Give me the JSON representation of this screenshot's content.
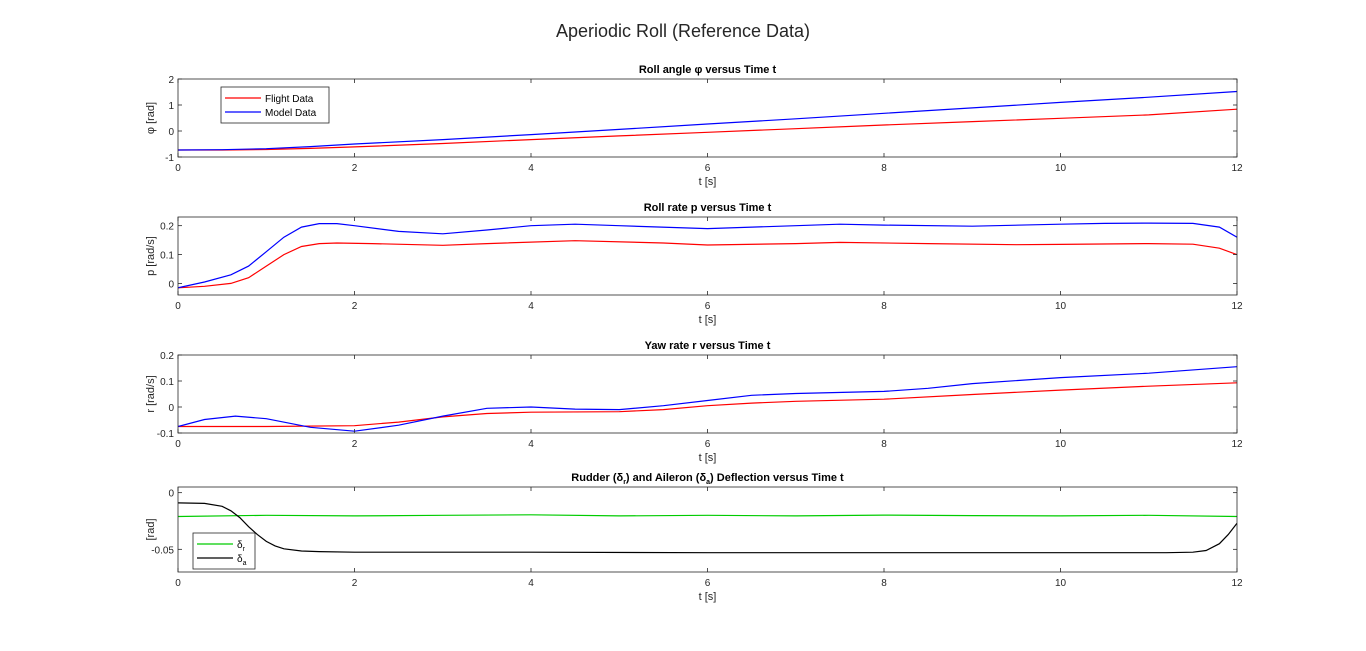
{
  "figure_title": "Aperiodic Roll (Reference Data)",
  "colors": {
    "flight": "#ff0000",
    "model": "#0000ff",
    "rudder": "#00cc00",
    "aileron": "#000000"
  },
  "chart_data": [
    {
      "type": "line",
      "title": "Roll angle φ versus Time t",
      "xlabel": "t [s]",
      "ylabel": "φ [rad]",
      "xlim": [
        0,
        12
      ],
      "ylim": [
        -1,
        2
      ],
      "xticks": [
        0,
        2,
        4,
        6,
        8,
        10,
        12
      ],
      "yticks": [
        -1,
        0,
        1,
        2
      ],
      "legend": {
        "position": "top-left"
      },
      "grid": false,
      "series": [
        {
          "name": "Flight Data",
          "color": "#ff0000",
          "x": [
            0,
            0.5,
            1,
            1.5,
            2,
            3,
            4,
            5,
            6,
            7,
            8,
            9,
            10,
            11,
            12
          ],
          "y": [
            -0.73,
            -0.73,
            -0.71,
            -0.67,
            -0.61,
            -0.48,
            -0.33,
            -0.19,
            -0.05,
            0.09,
            0.23,
            0.36,
            0.49,
            0.62,
            0.84
          ]
        },
        {
          "name": "Model Data",
          "color": "#0000ff",
          "x": [
            0,
            0.5,
            1,
            1.5,
            2,
            3,
            4,
            5,
            6,
            7,
            8,
            9,
            10,
            11,
            12
          ],
          "y": [
            -0.73,
            -0.72,
            -0.68,
            -0.6,
            -0.5,
            -0.33,
            -0.14,
            0.06,
            0.27,
            0.47,
            0.68,
            0.89,
            1.1,
            1.3,
            1.52
          ]
        }
      ]
    },
    {
      "type": "line",
      "title": "Roll rate p versus Time t",
      "xlabel": "t [s]",
      "ylabel": "p [rad/s]",
      "xlim": [
        0,
        12
      ],
      "ylim": [
        -0.04,
        0.23
      ],
      "xticks": [
        0,
        2,
        4,
        6,
        8,
        10,
        12
      ],
      "yticks": [
        0,
        0.1,
        0.2
      ],
      "grid": false,
      "series": [
        {
          "name": "Flight Data",
          "color": "#ff0000",
          "x": [
            0,
            0.3,
            0.6,
            0.8,
            1.0,
            1.2,
            1.4,
            1.6,
            1.8,
            2.2,
            3,
            3.5,
            4.5,
            5.5,
            6,
            7,
            7.5,
            8.5,
            9.5,
            10,
            11,
            11.5,
            11.8,
            12
          ],
          "y": [
            -0.015,
            -0.01,
            0.0,
            0.02,
            0.06,
            0.1,
            0.128,
            0.138,
            0.14,
            0.138,
            0.132,
            0.138,
            0.148,
            0.14,
            0.133,
            0.138,
            0.142,
            0.138,
            0.134,
            0.135,
            0.138,
            0.136,
            0.122,
            0.1
          ]
        },
        {
          "name": "Model Data",
          "color": "#0000ff",
          "x": [
            0,
            0.3,
            0.6,
            0.8,
            1.0,
            1.2,
            1.4,
            1.6,
            1.8,
            2.0,
            2.5,
            3,
            3.5,
            4,
            4.5,
            5,
            6,
            7,
            7.5,
            8,
            9,
            10,
            10.5,
            11,
            11.5,
            11.8,
            12
          ],
          "y": [
            -0.015,
            0.005,
            0.03,
            0.06,
            0.11,
            0.16,
            0.195,
            0.207,
            0.207,
            0.2,
            0.18,
            0.172,
            0.185,
            0.2,
            0.205,
            0.2,
            0.19,
            0.2,
            0.205,
            0.202,
            0.198,
            0.205,
            0.208,
            0.209,
            0.208,
            0.195,
            0.16
          ]
        }
      ]
    },
    {
      "type": "line",
      "title": "Yaw rate r versus Time t",
      "xlabel": "t [s]",
      "ylabel": "r [rad/s]",
      "xlim": [
        0,
        12
      ],
      "ylim": [
        -0.1,
        0.2
      ],
      "xticks": [
        0,
        2,
        4,
        6,
        8,
        10,
        12
      ],
      "yticks": [
        -0.1,
        0,
        0.1,
        0.2
      ],
      "grid": false,
      "series": [
        {
          "name": "Flight Data",
          "color": "#ff0000",
          "x": [
            0,
            1,
            2,
            2.5,
            3,
            3.5,
            4,
            5,
            5.5,
            6,
            6.5,
            7,
            8,
            9,
            10,
            11,
            12
          ],
          "y": [
            -0.075,
            -0.075,
            -0.072,
            -0.058,
            -0.038,
            -0.025,
            -0.02,
            -0.018,
            -0.01,
            0.005,
            0.015,
            0.022,
            0.03,
            0.048,
            0.065,
            0.08,
            0.093
          ]
        },
        {
          "name": "Model Data",
          "color": "#0000ff",
          "x": [
            0,
            0.3,
            0.65,
            1.0,
            1.5,
            2.0,
            2.5,
            3,
            3.5,
            4,
            4.5,
            5,
            5.5,
            6,
            6.5,
            7,
            8,
            8.5,
            9,
            10,
            11,
            12
          ],
          "y": [
            -0.075,
            -0.048,
            -0.035,
            -0.045,
            -0.078,
            -0.093,
            -0.07,
            -0.035,
            -0.005,
            0.0,
            -0.008,
            -0.01,
            0.005,
            0.025,
            0.045,
            0.052,
            0.06,
            0.072,
            0.09,
            0.113,
            0.13,
            0.155
          ]
        }
      ]
    },
    {
      "type": "line",
      "title": "Rudder (δr) and Aileron (δa) Deflection versus Time t",
      "title_parts": [
        "Rudder (",
        "δ",
        "r",
        ") and Aileron (",
        "δ",
        "a",
        ") Deflection versus Time t"
      ],
      "xlabel": "t [s]",
      "ylabel": "[rad]",
      "xlim": [
        0,
        12
      ],
      "ylim": [
        -0.07,
        0.005
      ],
      "xticks": [
        0,
        2,
        4,
        6,
        8,
        10,
        12
      ],
      "yticks": [
        -0.05,
        0
      ],
      "ytick_labels": [
        "-0.05",
        "0"
      ],
      "legend": {
        "position": "bottom-left"
      },
      "grid": false,
      "series": [
        {
          "name": "δr",
          "name_base": "δ",
          "name_sub": "r",
          "color": "#00cc00",
          "x": [
            0,
            1,
            2,
            3,
            4,
            5,
            6,
            7,
            8,
            9,
            10,
            11,
            12
          ],
          "y": [
            -0.021,
            -0.02,
            -0.0205,
            -0.02,
            -0.0195,
            -0.0205,
            -0.02,
            -0.0205,
            -0.0198,
            -0.0202,
            -0.0205,
            -0.02,
            -0.021
          ]
        },
        {
          "name": "δa",
          "name_base": "δ",
          "name_sub": "a",
          "color": "#000000",
          "x": [
            0,
            0.3,
            0.5,
            0.6,
            0.7,
            0.8,
            0.9,
            1.0,
            1.1,
            1.2,
            1.4,
            1.6,
            2,
            4,
            6,
            8,
            10,
            11.2,
            11.5,
            11.65,
            11.8,
            11.9,
            12
          ],
          "y": [
            -0.009,
            -0.0095,
            -0.012,
            -0.016,
            -0.022,
            -0.03,
            -0.037,
            -0.043,
            -0.047,
            -0.0495,
            -0.0515,
            -0.052,
            -0.0525,
            -0.0525,
            -0.053,
            -0.053,
            -0.053,
            -0.053,
            -0.0525,
            -0.051,
            -0.045,
            -0.037,
            -0.027
          ]
        }
      ]
    }
  ]
}
